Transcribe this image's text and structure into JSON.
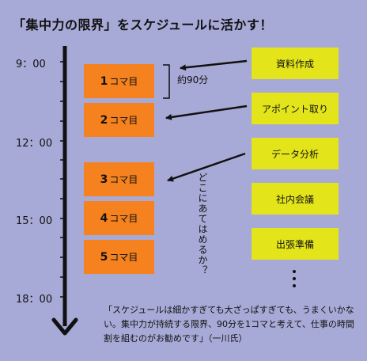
{
  "title": "「集中力の限界」をスケジュールに活かす！",
  "times": [
    "9：00",
    "12：00",
    "15：00",
    "18：00"
  ],
  "slots": [
    {
      "num": "1",
      "label": "コマ目"
    },
    {
      "num": "2",
      "label": "コマ目"
    },
    {
      "num": "3",
      "label": "コマ目"
    },
    {
      "num": "4",
      "label": "コマ目"
    },
    {
      "num": "5",
      "label": "コマ目"
    }
  ],
  "tasks": [
    "資料作成",
    "アポイント取り",
    "データ分析",
    "社内会議",
    "出張準備"
  ],
  "approx_label": "約90分",
  "vertical_note": "どこにあてはめるか？",
  "more_marker": "⋮",
  "quote": "「スケジュールは細かすぎても大ざっぱすぎても、うまくいかない。集中力が持続する限界、90分を1コマと考えて、仕事の時間割を組むのがお勧めです」（一川氏）",
  "colors": {
    "background": "#a7a9d6",
    "slot": "#f5821f",
    "task": "#e3e51a"
  }
}
